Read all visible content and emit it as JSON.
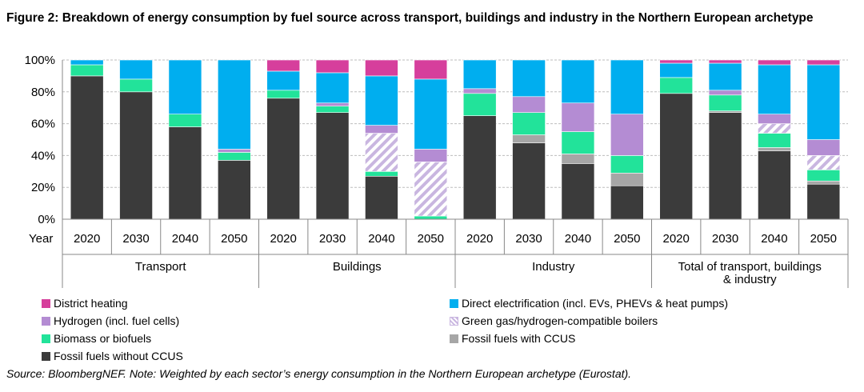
{
  "title": "Figure 2: Breakdown of energy consumption by fuel source across transport, buildings and industry in the Northern European archetype",
  "source": "Source: BloombergNEF. Note: Weighted by each sector’s energy consumption in the Northern European archetype (Eurostat).",
  "colors": {
    "District heating": "#d63f9c",
    "Direct electrification (incl. EVs, PHEVs & heat pumps)": "#00aeef",
    "Hydrogen (incl. fuel cells)": "#b48cd3",
    "Green gas/hydrogen-compatible boilers": "#c9b6e0",
    "Biomass or biofuels": "#22e39a",
    "Fossil fuels with CCUS": "#a6a6a6",
    "Fossil fuels without CCUS": "#3b3b3b"
  },
  "chart_data": {
    "type": "bar",
    "stacked": true,
    "ylim": [
      0,
      100
    ],
    "yticks": [
      "0%",
      "20%",
      "40%",
      "60%",
      "80%",
      "100%"
    ],
    "x_axis_prefix": "Year",
    "groups": [
      "Transport",
      "Buildings",
      "Industry",
      "Total of transport, buildings & industry"
    ],
    "categories": [
      "2020",
      "2030",
      "2040",
      "2050",
      "2020",
      "2030",
      "2040",
      "2050",
      "2020",
      "2030",
      "2040",
      "2050",
      "2020",
      "2030",
      "2040",
      "2050"
    ],
    "legend_order": [
      "District heating",
      "Direct electrification (incl. EVs, PHEVs & heat pumps)",
      "Hydrogen (incl. fuel cells)",
      "Green gas/hydrogen-compatible boilers",
      "Biomass or biofuels",
      "Fossil fuels with CCUS",
      "Fossil fuels without CCUS"
    ],
    "series": [
      {
        "name": "Fossil fuels without CCUS",
        "values": [
          90,
          80,
          58,
          37,
          76,
          67,
          27,
          0,
          65,
          48,
          35,
          21,
          79,
          67,
          43,
          22
        ]
      },
      {
        "name": "Fossil fuels with CCUS",
        "values": [
          0,
          0,
          0,
          0,
          0,
          0,
          0,
          0,
          0,
          5,
          6,
          8,
          0,
          1,
          2,
          2
        ]
      },
      {
        "name": "Biomass or biofuels",
        "values": [
          7,
          8,
          8,
          5,
          5,
          4,
          3,
          2,
          14,
          14,
          14,
          11,
          10,
          10,
          9,
          7
        ]
      },
      {
        "name": "Green gas/hydrogen-compatible boilers",
        "values": [
          0,
          0,
          0,
          0,
          0,
          0,
          24,
          34,
          0,
          0,
          0,
          0,
          0,
          0,
          6,
          9
        ]
      },
      {
        "name": "Hydrogen (incl. fuel cells)",
        "values": [
          0,
          0,
          0,
          2,
          0,
          2,
          5,
          8,
          3,
          10,
          18,
          26,
          0,
          3,
          6,
          10
        ]
      },
      {
        "name": "Direct electrification (incl. EVs, PHEVs & heat pumps)",
        "values": [
          3,
          12,
          34,
          56,
          12,
          19,
          31,
          44,
          18,
          23,
          27,
          34,
          9,
          17,
          31,
          47
        ]
      },
      {
        "name": "District heating",
        "values": [
          0,
          0,
          0,
          0,
          7,
          8,
          10,
          12,
          0,
          0,
          0,
          0,
          2,
          2,
          3,
          3
        ]
      }
    ]
  }
}
